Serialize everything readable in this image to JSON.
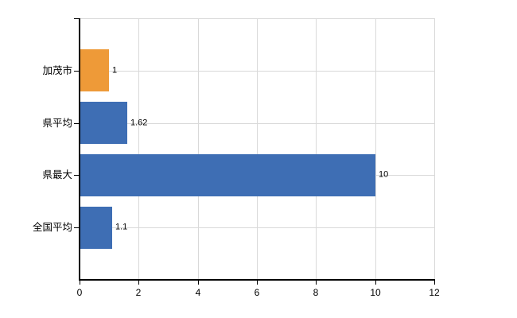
{
  "chart_data": {
    "type": "bar",
    "orientation": "horizontal",
    "title": "",
    "xlabel": "",
    "ylabel": "",
    "categories": [
      "加茂市",
      "県平均",
      "県最大",
      "全国平均"
    ],
    "values": [
      1,
      1.62,
      10,
      1.1
    ],
    "value_labels": [
      "1",
      "1.62",
      "10",
      "1.1"
    ],
    "bar_colors": [
      "#ee9a38",
      "#3e6eb4",
      "#3e6eb4",
      "#3e6eb4"
    ],
    "xlim": [
      0,
      12
    ],
    "x_ticks": [
      "0",
      "2",
      "4",
      "6",
      "8",
      "10",
      "12"
    ],
    "grid": true,
    "legend": false
  },
  "colors": {
    "background": "#ffffff",
    "grid": "#d9d9d9",
    "axis": "#000000",
    "text": "#000000",
    "bar_orange": "#ee9a38",
    "bar_blue": "#3e6eb4"
  }
}
